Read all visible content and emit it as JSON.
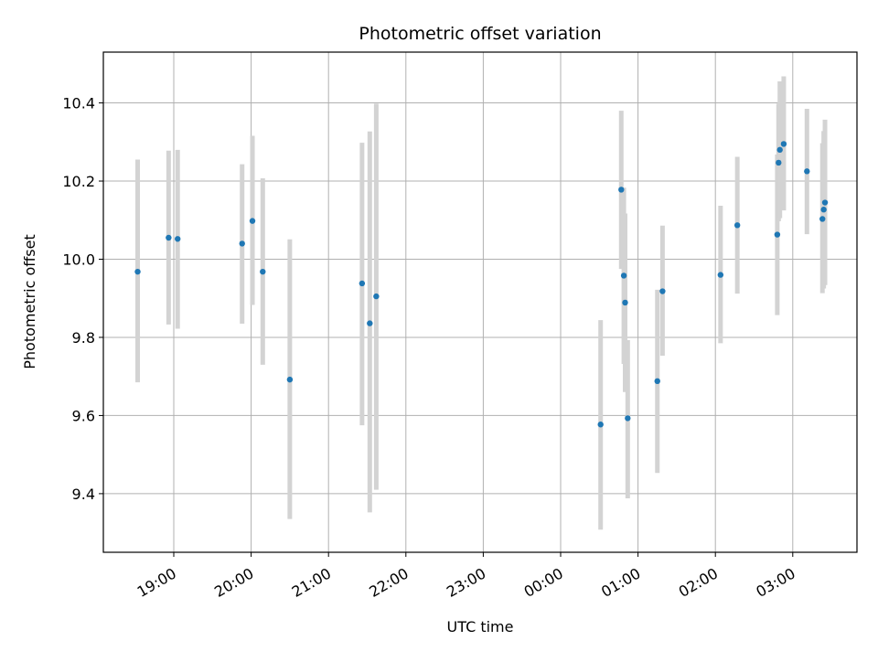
{
  "chart_data": {
    "type": "scatter",
    "title": "Photometric offset variation",
    "xlabel": "UTC time",
    "ylabel": "Photometric offset",
    "x_tick_labels": [
      "19:00",
      "20:00",
      "21:00",
      "22:00",
      "23:00",
      "00:00",
      "01:00",
      "02:00",
      "03:00"
    ],
    "y_tick_labels": [
      "9.4",
      "9.6",
      "9.8",
      "10.0",
      "10.2",
      "10.4"
    ],
    "y_ticks": [
      9.4,
      9.6,
      9.8,
      10.0,
      10.2,
      10.4
    ],
    "ylim": [
      9.25,
      10.53
    ],
    "grid": true,
    "colors": {
      "marker": "#1f77b4",
      "errorbar": "#d3d3d3",
      "grid": "#b0b0b0"
    },
    "points": [
      {
        "x": "18:32",
        "y": 9.968,
        "lo": 9.685,
        "hi": 10.255
      },
      {
        "x": "18:56",
        "y": 10.055,
        "lo": 9.833,
        "hi": 10.278
      },
      {
        "x": "19:03",
        "y": 10.052,
        "lo": 9.822,
        "hi": 10.28
      },
      {
        "x": "19:53",
        "y": 10.04,
        "lo": 9.835,
        "hi": 10.243
      },
      {
        "x": "20:01",
        "y": 10.098,
        "lo": 9.883,
        "hi": 10.316
      },
      {
        "x": "20:09",
        "y": 9.968,
        "lo": 9.73,
        "hi": 10.207
      },
      {
        "x": "20:30",
        "y": 9.692,
        "lo": 9.335,
        "hi": 10.051
      },
      {
        "x": "21:26",
        "y": 9.938,
        "lo": 9.575,
        "hi": 10.298
      },
      {
        "x": "21:32",
        "y": 9.836,
        "lo": 9.352,
        "hi": 10.327
      },
      {
        "x": "21:37",
        "y": 9.905,
        "lo": 9.41,
        "hi": 10.398
      },
      {
        "x": "00:31",
        "y": 9.577,
        "lo": 9.308,
        "hi": 9.844
      },
      {
        "x": "00:47",
        "y": 10.178,
        "lo": 9.975,
        "hi": 10.38
      },
      {
        "x": "00:49",
        "y": 9.958,
        "lo": 9.732,
        "hi": 10.183
      },
      {
        "x": "00:50",
        "y": 9.889,
        "lo": 9.66,
        "hi": 10.117
      },
      {
        "x": "00:52",
        "y": 9.593,
        "lo": 9.388,
        "hi": 9.793
      },
      {
        "x": "01:15",
        "y": 9.688,
        "lo": 9.453,
        "hi": 9.922
      },
      {
        "x": "01:19",
        "y": 9.918,
        "lo": 9.753,
        "hi": 10.086
      },
      {
        "x": "02:04",
        "y": 9.96,
        "lo": 9.785,
        "hi": 10.137
      },
      {
        "x": "02:17",
        "y": 10.087,
        "lo": 9.912,
        "hi": 10.262
      },
      {
        "x": "02:48",
        "y": 10.063,
        "lo": 9.857,
        "hi": 10.268
      },
      {
        "x": "02:49",
        "y": 10.247,
        "lo": 10.097,
        "hi": 10.398
      },
      {
        "x": "02:50",
        "y": 10.28,
        "lo": 10.105,
        "hi": 10.455
      },
      {
        "x": "02:53",
        "y": 10.295,
        "lo": 10.125,
        "hi": 10.468
      },
      {
        "x": "03:11",
        "y": 10.225,
        "lo": 10.064,
        "hi": 10.385
      },
      {
        "x": "03:23",
        "y": 10.103,
        "lo": 9.913,
        "hi": 10.297
      },
      {
        "x": "03:24",
        "y": 10.127,
        "lo": 9.925,
        "hi": 10.328
      },
      {
        "x": "03:25",
        "y": 10.145,
        "lo": 9.934,
        "hi": 10.357
      }
    ]
  }
}
